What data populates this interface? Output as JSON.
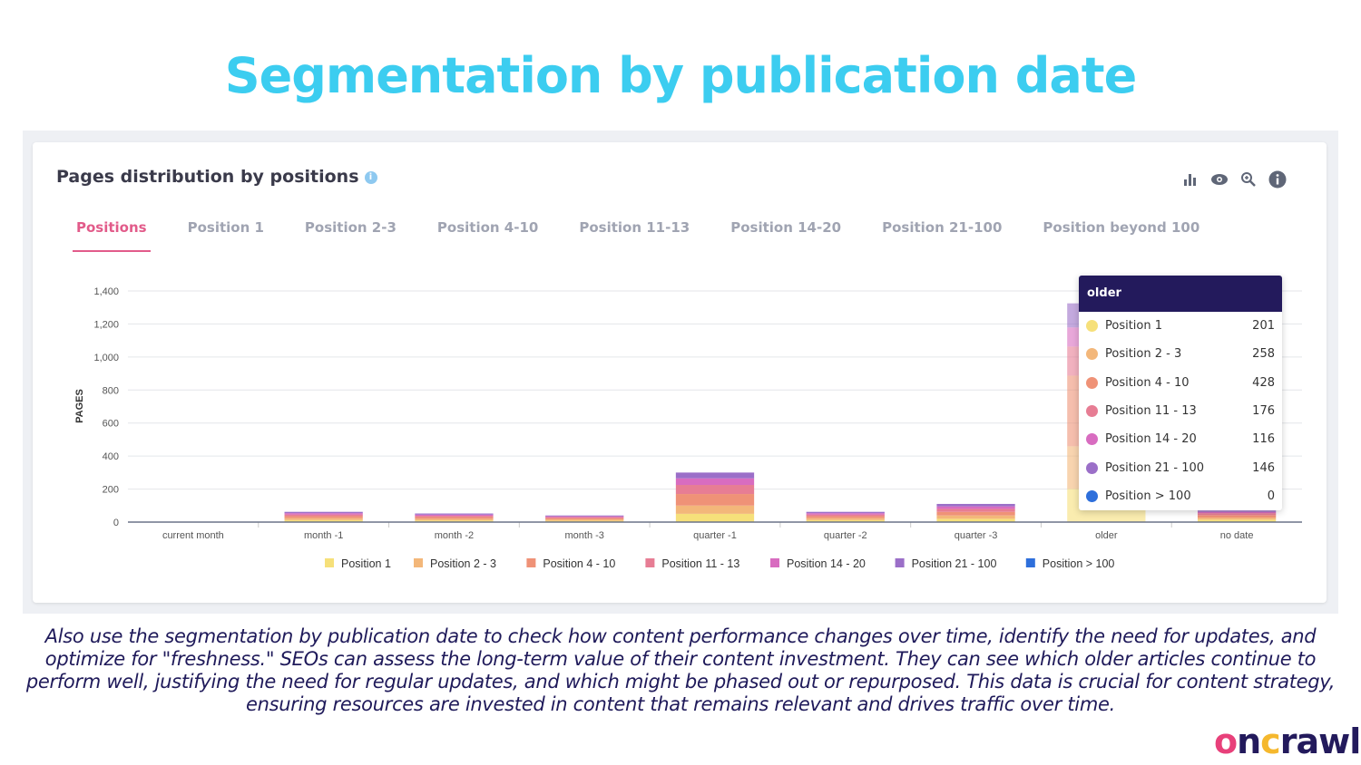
{
  "slide_title": "Segmentation by publication date",
  "panel": {
    "title": "Pages distribution by positions",
    "info_icon": "i"
  },
  "toolbar_icons": [
    "bar-chart-icon",
    "eye-icon",
    "zoom-in-icon",
    "info-icon"
  ],
  "tabs": [
    "Positions",
    "Position 1",
    "Position 2-3",
    "Position 4-10",
    "Position 11-13",
    "Position 14-20",
    "Position 21-100",
    "Position beyond 100"
  ],
  "colors": [
    "#f6e07a",
    "#f3b77a",
    "#ef9277",
    "#e77d94",
    "#d86cc0",
    "#9b6fc8",
    "#2e6fdb"
  ],
  "chart_data": {
    "type": "bar",
    "stacked": true,
    "ylabel": "PAGES",
    "ylim": [
      0,
      1400
    ],
    "yticks": [
      "0",
      "200",
      "400",
      "600",
      "800",
      "1,000",
      "1,200",
      "1,400"
    ],
    "categories": [
      "current month",
      "month -1",
      "month -2",
      "month -3",
      "quarter -1",
      "quarter -2",
      "quarter -3",
      "older",
      "no date"
    ],
    "series": [
      {
        "name": "Position 1",
        "values": [
          0,
          12,
          10,
          8,
          50,
          12,
          20,
          201,
          15
        ]
      },
      {
        "name": "Position 2 - 3",
        "values": [
          0,
          12,
          10,
          8,
          50,
          12,
          20,
          258,
          12
        ]
      },
      {
        "name": "Position 4 - 10",
        "values": [
          0,
          12,
          10,
          8,
          70,
          12,
          22,
          428,
          15
        ]
      },
      {
        "name": "Position 11 - 13",
        "values": [
          0,
          10,
          8,
          6,
          55,
          10,
          18,
          176,
          12
        ]
      },
      {
        "name": "Position 14 - 20",
        "values": [
          0,
          8,
          7,
          5,
          40,
          8,
          15,
          116,
          8
        ]
      },
      {
        "name": "Position 21 - 100",
        "values": [
          0,
          8,
          7,
          5,
          35,
          8,
          15,
          146,
          8
        ]
      },
      {
        "name": "Position > 100",
        "values": [
          0,
          0,
          0,
          0,
          0,
          0,
          0,
          0,
          0
        ]
      }
    ],
    "legend_position": "bottom"
  },
  "tooltip": {
    "title": "older",
    "rows": [
      {
        "label": "Position 1",
        "value": "201"
      },
      {
        "label": "Position 2 - 3",
        "value": "258"
      },
      {
        "label": "Position 4 - 10",
        "value": "428"
      },
      {
        "label": "Position 11 - 13",
        "value": "176"
      },
      {
        "label": "Position 14 - 20",
        "value": "116"
      },
      {
        "label": "Position 21 - 100",
        "value": "146"
      },
      {
        "label": "Position > 100",
        "value": "0"
      }
    ]
  },
  "description": "Also use the segmentation by publication date to check how content performance changes over time, identify the need for updates, and optimize for \"freshness.\"  SEOs can assess the long-term value of their content investment. They can see which older articles continue to perform well, justifying the need for regular updates, and which might be phased out or repurposed. This data is crucial for content strategy, ensuring resources are invested in content that remains relevant and drives traffic over time.",
  "logo": "oncrawl"
}
